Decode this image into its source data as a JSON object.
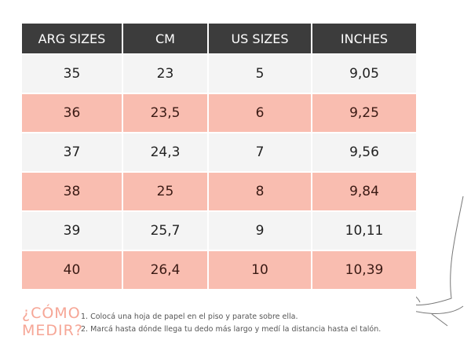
{
  "table": {
    "header": [
      "ARG SIZES",
      "CM",
      "US SIZES",
      "INCHES"
    ],
    "rows": [
      [
        "35",
        "23",
        "5",
        "9,05"
      ],
      [
        "36",
        "23,5",
        "6",
        "9,25"
      ],
      [
        "37",
        "24,3",
        "7",
        "9,56"
      ],
      [
        "38",
        "25",
        "8",
        "9,84"
      ],
      [
        "39",
        "25,7",
        "9",
        "10,11"
      ],
      [
        "40",
        "26,4",
        "10",
        "10,39"
      ]
    ]
  },
  "how_to": {
    "title": [
      "¿CÓMO",
      "MEDIR?"
    ],
    "steps": [
      "1. Colocá una hoja de papel en el piso y parate sobre ella.",
      "2. Marcá hasta dónde llega tu dedo más largo y medí la distancia hasta el talón."
    ]
  }
}
